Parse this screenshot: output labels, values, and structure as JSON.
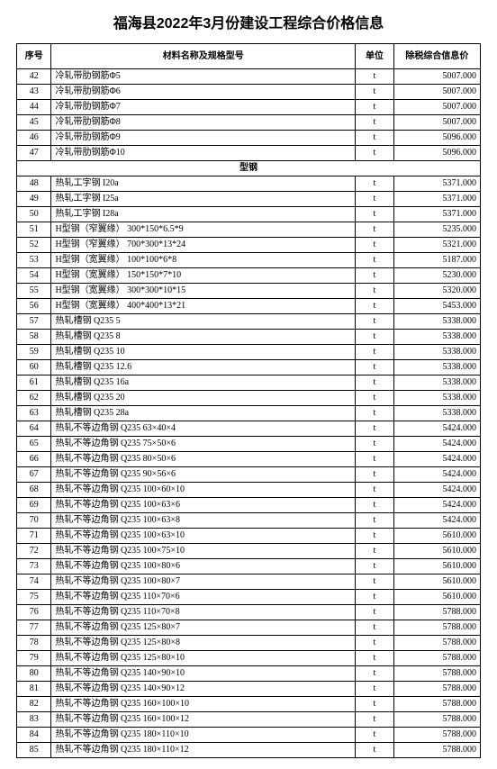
{
  "title": "福海县2022年3月份建设工程综合价格信息",
  "columns": {
    "seq": "序号",
    "name": "材料名称及规格型号",
    "unit": "单位",
    "price": "除税综合信息价"
  },
  "section_header": "型钢",
  "rows_a": [
    {
      "seq": "42",
      "name": "冷轧带肋钢筋Φ5",
      "unit": "t",
      "price": "5007.000"
    },
    {
      "seq": "43",
      "name": "冷轧带肋钢筋Φ6",
      "unit": "t",
      "price": "5007.000"
    },
    {
      "seq": "44",
      "name": "冷轧带肋钢筋Φ7",
      "unit": "t",
      "price": "5007.000"
    },
    {
      "seq": "45",
      "name": "冷轧带肋钢筋Φ8",
      "unit": "t",
      "price": "5007.000"
    },
    {
      "seq": "46",
      "name": "冷轧带肋钢筋Φ9",
      "unit": "t",
      "price": "5096.000"
    },
    {
      "seq": "47",
      "name": "冷轧带肋钢筋Φ10",
      "unit": "t",
      "price": "5096.000"
    }
  ],
  "rows_b": [
    {
      "seq": "48",
      "name": "热轧工字钢 I20a",
      "unit": "t",
      "price": "5371.000"
    },
    {
      "seq": "49",
      "name": "热轧工字钢 I25a",
      "unit": "t",
      "price": "5371.000"
    },
    {
      "seq": "50",
      "name": "热轧工字钢 I28a",
      "unit": "t",
      "price": "5371.000"
    },
    {
      "seq": "51",
      "name": "H型钢（窄翼缘） 300*150*6.5*9",
      "unit": "t",
      "price": "5235.000"
    },
    {
      "seq": "52",
      "name": "H型钢（窄翼缘） 700*300*13*24",
      "unit": "t",
      "price": "5321.000"
    },
    {
      "seq": "53",
      "name": "H型钢（宽翼缘） 100*100*6*8",
      "unit": "t",
      "price": "5187.000"
    },
    {
      "seq": "54",
      "name": "H型钢（宽翼缘） 150*150*7*10",
      "unit": "t",
      "price": "5230.000"
    },
    {
      "seq": "55",
      "name": "H型钢（宽翼缘） 300*300*10*15",
      "unit": "t",
      "price": "5320.000"
    },
    {
      "seq": "56",
      "name": "H型钢（宽翼缘） 400*400*13*21",
      "unit": "t",
      "price": "5453.000"
    },
    {
      "seq": "57",
      "name": "热轧槽钢 Q235 5",
      "unit": "t",
      "price": "5338.000"
    },
    {
      "seq": "58",
      "name": "热轧槽钢 Q235 8",
      "unit": "t",
      "price": "5338.000"
    },
    {
      "seq": "59",
      "name": "热轧槽钢 Q235 10",
      "unit": "t",
      "price": "5338.000"
    },
    {
      "seq": "60",
      "name": "热轧槽钢 Q235 12.6",
      "unit": "t",
      "price": "5338.000"
    },
    {
      "seq": "61",
      "name": "热轧槽钢 Q235 16a",
      "unit": "t",
      "price": "5338.000"
    },
    {
      "seq": "62",
      "name": "热轧槽钢 Q235 20",
      "unit": "t",
      "price": "5338.000"
    },
    {
      "seq": "63",
      "name": "热轧槽钢 Q235 28a",
      "unit": "t",
      "price": "5338.000"
    },
    {
      "seq": "64",
      "name": "热轧不等边角钢 Q235 63×40×4",
      "unit": "t",
      "price": "5424.000"
    },
    {
      "seq": "65",
      "name": "热轧不等边角钢 Q235 75×50×6",
      "unit": "t",
      "price": "5424.000"
    },
    {
      "seq": "66",
      "name": "热轧不等边角钢 Q235 80×50×6",
      "unit": "t",
      "price": "5424.000"
    },
    {
      "seq": "67",
      "name": "热轧不等边角钢 Q235 90×56×6",
      "unit": "t",
      "price": "5424.000"
    },
    {
      "seq": "68",
      "name": "热轧不等边角钢 Q235 100×60×10",
      "unit": "t",
      "price": "5424.000"
    },
    {
      "seq": "69",
      "name": "热轧不等边角钢 Q235 100×63×6",
      "unit": "t",
      "price": "5424.000"
    },
    {
      "seq": "70",
      "name": "热轧不等边角钢 Q235 100×63×8",
      "unit": "t",
      "price": "5424.000"
    },
    {
      "seq": "71",
      "name": "热轧不等边角钢 Q235 100×63×10",
      "unit": "t",
      "price": "5610.000"
    },
    {
      "seq": "72",
      "name": "热轧不等边角钢 Q235 100×75×10",
      "unit": "t",
      "price": "5610.000"
    },
    {
      "seq": "73",
      "name": "热轧不等边角钢 Q235 100×80×6",
      "unit": "t",
      "price": "5610.000"
    },
    {
      "seq": "74",
      "name": "热轧不等边角钢 Q235 100×80×7",
      "unit": "t",
      "price": "5610.000"
    },
    {
      "seq": "75",
      "name": "热轧不等边角钢 Q235 110×70×6",
      "unit": "t",
      "price": "5610.000"
    },
    {
      "seq": "76",
      "name": "热轧不等边角钢 Q235 110×70×8",
      "unit": "t",
      "price": "5788.000"
    },
    {
      "seq": "77",
      "name": "热轧不等边角钢 Q235 125×80×7",
      "unit": "t",
      "price": "5788.000"
    },
    {
      "seq": "78",
      "name": "热轧不等边角钢 Q235 125×80×8",
      "unit": "t",
      "price": "5788.000"
    },
    {
      "seq": "79",
      "name": "热轧不等边角钢 Q235 125×80×10",
      "unit": "t",
      "price": "5788.000"
    },
    {
      "seq": "80",
      "name": "热轧不等边角钢 Q235 140×90×10",
      "unit": "t",
      "price": "5788.000"
    },
    {
      "seq": "81",
      "name": "热轧不等边角钢 Q235 140×90×12",
      "unit": "t",
      "price": "5788.000"
    },
    {
      "seq": "82",
      "name": "热轧不等边角钢 Q235 160×100×10",
      "unit": "t",
      "price": "5788.000"
    },
    {
      "seq": "83",
      "name": "热轧不等边角钢 Q235 160×100×12",
      "unit": "t",
      "price": "5788.000"
    },
    {
      "seq": "84",
      "name": "热轧不等边角钢 Q235 180×110×10",
      "unit": "t",
      "price": "5788.000"
    },
    {
      "seq": "85",
      "name": "热轧不等边角钢 Q235 180×110×12",
      "unit": "t",
      "price": "5788.000"
    }
  ]
}
